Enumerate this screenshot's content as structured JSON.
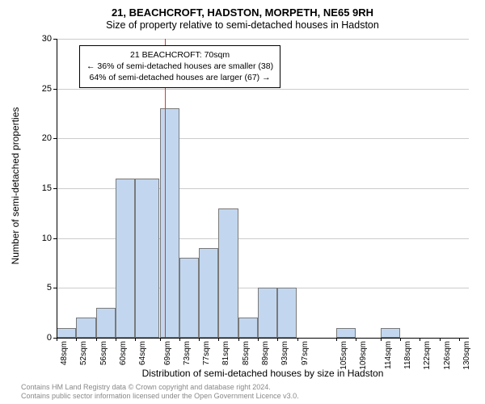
{
  "title_main": "21, BEACHCROFT, HADSTON, MORPETH, NE65 9RH",
  "title_sub": "Size of property relative to semi-detached houses in Hadston",
  "y_axis_label": "Number of semi-detached properties",
  "x_axis_label": "Distribution of semi-detached houses by size in Hadston",
  "chart": {
    "type": "histogram",
    "ylim": [
      0,
      30
    ],
    "ytick_step": 5,
    "x_labels": [
      "48sqm",
      "52sqm",
      "56sqm",
      "60sqm",
      "64sqm",
      "69sqm",
      "73sqm",
      "77sqm",
      "81sqm",
      "85sqm",
      "89sqm",
      "93sqm",
      "97sqm",
      "105sqm",
      "109sqm",
      "114sqm",
      "118sqm",
      "122sqm",
      "126sqm",
      "130sqm"
    ],
    "x_values": [
      48,
      52,
      56,
      60,
      64,
      69,
      73,
      77,
      81,
      85,
      89,
      93,
      97,
      105,
      109,
      114,
      118,
      122,
      126,
      130
    ],
    "x_min": 48,
    "x_max": 132,
    "bars": [
      {
        "x0": 48,
        "x1": 52,
        "count": 1
      },
      {
        "x0": 52,
        "x1": 56,
        "count": 2
      },
      {
        "x0": 56,
        "x1": 60,
        "count": 3
      },
      {
        "x0": 60,
        "x1": 64,
        "count": 16
      },
      {
        "x0": 64,
        "x1": 69,
        "count": 16
      },
      {
        "x0": 69,
        "x1": 73,
        "count": 23
      },
      {
        "x0": 73,
        "x1": 77,
        "count": 8
      },
      {
        "x0": 77,
        "x1": 81,
        "count": 9
      },
      {
        "x0": 81,
        "x1": 85,
        "count": 13
      },
      {
        "x0": 85,
        "x1": 89,
        "count": 2
      },
      {
        "x0": 89,
        "x1": 93,
        "count": 5
      },
      {
        "x0": 93,
        "x1": 97,
        "count": 5
      },
      {
        "x0": 105,
        "x1": 109,
        "count": 1
      },
      {
        "x0": 114,
        "x1": 118,
        "count": 1
      }
    ],
    "marker_value": 70,
    "bar_fill": "#c2d7ef",
    "bar_border": "#7a7a7a",
    "grid_color": "#cccccc",
    "marker_color": "#d43b2e",
    "background": "#ffffff"
  },
  "info_box": {
    "line1": "21 BEACHCROFT: 70sqm",
    "line2": "← 36% of semi-detached houses are smaller (38)",
    "line3": "64% of semi-detached houses are larger (67) →"
  },
  "footer": {
    "line1": "Contains HM Land Registry data © Crown copyright and database right 2024.",
    "line2": "Contains public sector information licensed under the Open Government Licence v3.0."
  }
}
